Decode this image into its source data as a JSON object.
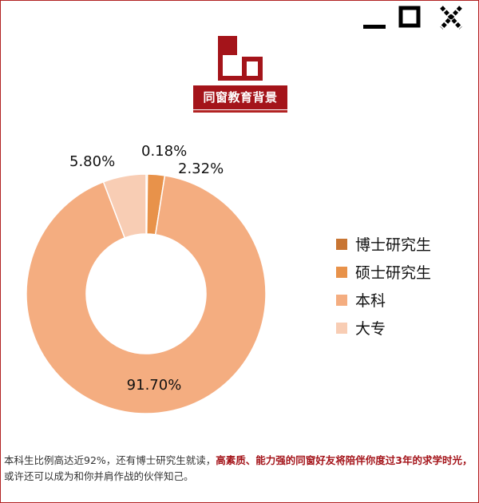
{
  "window_controls": [
    "minimize-icon",
    "maximize-icon",
    "close-icon"
  ],
  "header": {
    "title": "同窗教育背景",
    "accent_color": "#a4141a"
  },
  "chart_data": {
    "type": "pie",
    "donut": true,
    "categories": [
      "博士研究生",
      "硕士研究生",
      "本科",
      "大专"
    ],
    "values": [
      0.18,
      2.32,
      91.7,
      5.8
    ],
    "data_labels": [
      "0.18%",
      "2.32%",
      "91.70%",
      "5.80%"
    ],
    "colors": [
      "#c87533",
      "#e8924a",
      "#f4ad80",
      "#f8cdb4"
    ],
    "legend_position": "right"
  },
  "caption": {
    "part1": "本科生比例高达近92%，还有博士研究生就读，",
    "highlight": "高素质、能力强的同窗好友将陪伴你度过3年的求学时光，",
    "part2": "或许还可以成为和你并肩作战的伙伴知己。"
  }
}
